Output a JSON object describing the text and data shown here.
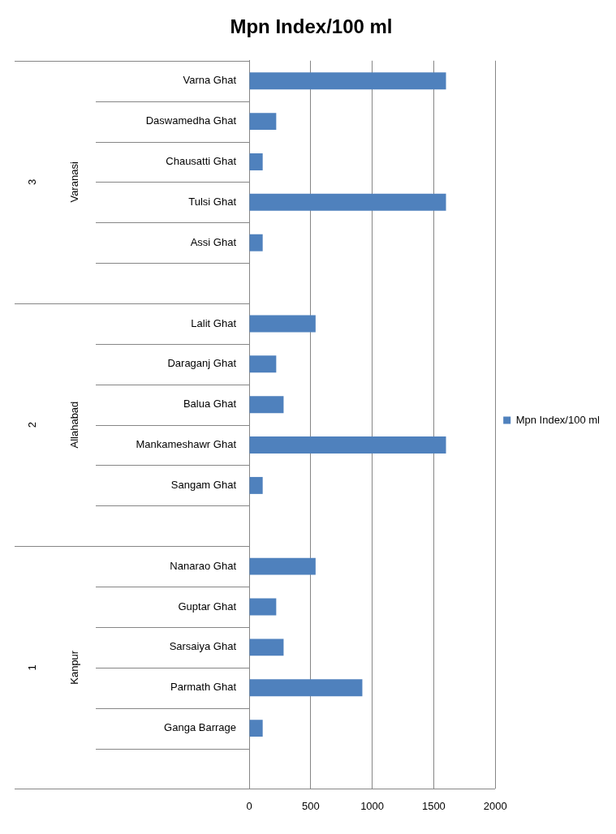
{
  "chart_data": {
    "type": "bar",
    "orientation": "horizontal",
    "title": "Mpn Index/100 ml",
    "categories": [
      "Varna Ghat",
      "Daswamedha Ghat",
      "Chausatti Ghat",
      "Tulsi Ghat",
      "Assi Ghat",
      null,
      "Lalit Ghat",
      "Daraganj Ghat",
      "Balua Ghat",
      "Mankameshawr Ghat",
      "Sangam Ghat",
      null,
      "Nanarao Ghat",
      "Guptar Ghat",
      "Sarsaiya Ghat",
      "Parmath Ghat",
      "Ganga Barrage",
      null
    ],
    "series": [
      {
        "name": "Mpn Index/100 ml",
        "color": "#4f81bd",
        "values": [
          1600,
          220,
          110,
          1600,
          110,
          null,
          540,
          220,
          280,
          1600,
          110,
          null,
          540,
          220,
          280,
          920,
          110,
          null
        ]
      }
    ],
    "annotations": [
      "3",
      "Varanasi",
      "2",
      "Allahabad",
      "1",
      "Kanpur"
    ],
    "xlim": [
      0,
      2000
    ],
    "xticks": [
      0,
      500,
      1000,
      1500,
      2000
    ],
    "grid": "x",
    "legend": "right"
  }
}
